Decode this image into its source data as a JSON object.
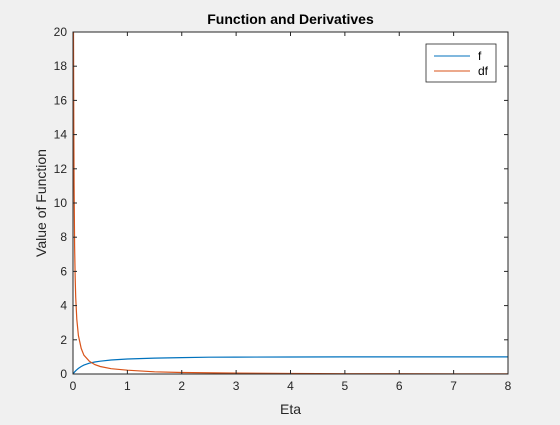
{
  "chart_data": {
    "type": "line",
    "title": "Function and Derivatives",
    "xlabel": "Eta",
    "ylabel": "Value of Function",
    "xlim": [
      0,
      8
    ],
    "ylim": [
      0,
      20
    ],
    "xticks": [
      "0",
      "1",
      "2",
      "3",
      "4",
      "5",
      "6",
      "7",
      "8"
    ],
    "yticks": [
      "0",
      "2",
      "4",
      "6",
      "8",
      "10",
      "12",
      "14",
      "16",
      "18",
      "20"
    ],
    "legend_position": "top-right",
    "grid": false,
    "series": [
      {
        "name": "f",
        "color": "#0072BD",
        "x": [
          0,
          0.03,
          0.06,
          0.1,
          0.15,
          0.2,
          0.3,
          0.4,
          0.5,
          0.7,
          1.0,
          1.5,
          2.0,
          2.5,
          3.0,
          4.0,
          5.0,
          6.0,
          7.0,
          8.0
        ],
        "y": [
          0,
          0.12,
          0.22,
          0.33,
          0.44,
          0.52,
          0.63,
          0.7,
          0.75,
          0.82,
          0.88,
          0.93,
          0.96,
          0.98,
          0.99,
          0.995,
          1.0,
          1.0,
          1.0,
          1.0
        ]
      },
      {
        "name": "df",
        "color": "#D95319",
        "x": [
          0.01,
          0.015,
          0.02,
          0.03,
          0.04,
          0.05,
          0.07,
          0.1,
          0.15,
          0.2,
          0.3,
          0.4,
          0.5,
          0.7,
          1.0,
          1.5,
          2.0,
          3.0,
          4.0,
          5.0,
          6.0,
          7.0,
          8.0
        ],
        "y": [
          20,
          14.5,
          11,
          7.5,
          5.6,
          4.5,
          3.2,
          2.25,
          1.5,
          1.1,
          0.75,
          0.55,
          0.44,
          0.31,
          0.22,
          0.13,
          0.09,
          0.05,
          0.03,
          0.02,
          0.015,
          0.012,
          0.01
        ]
      }
    ]
  }
}
